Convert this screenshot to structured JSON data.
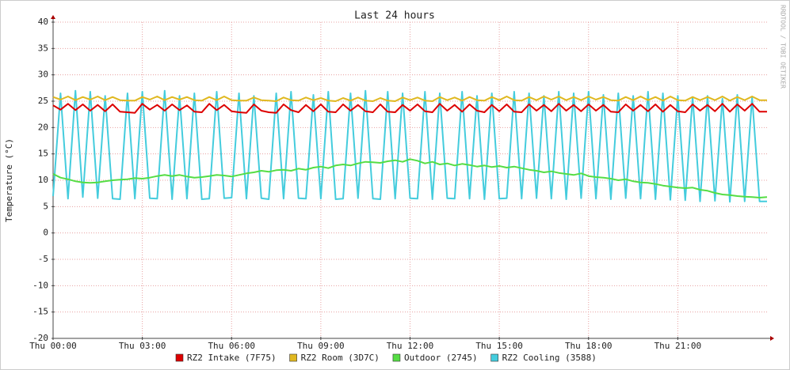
{
  "chart_data": {
    "type": "line",
    "title": "Last 24 hours",
    "ylabel": "Temperature (°C)",
    "watermark": "RRDTOOL / TOBI OETIKER",
    "xlim": [
      0,
      24
    ],
    "ylim": [
      -20,
      40
    ],
    "yticks": [
      -20,
      -15,
      -10,
      -5,
      0,
      5,
      10,
      15,
      20,
      25,
      30,
      35,
      40
    ],
    "xticks": [
      {
        "value": 0,
        "label": "Thu 00:00"
      },
      {
        "value": 3,
        "label": "Thu 03:00"
      },
      {
        "value": 6,
        "label": "Thu 06:00"
      },
      {
        "value": 9,
        "label": "Thu 09:00"
      },
      {
        "value": 12,
        "label": "Thu 12:00"
      },
      {
        "value": 15,
        "label": "Thu 15:00"
      },
      {
        "value": 18,
        "label": "Thu 18:00"
      },
      {
        "value": 21,
        "label": "Thu 21:00"
      }
    ],
    "grid": true,
    "x": [
      0,
      0.25,
      0.5,
      0.75,
      1,
      1.25,
      1.5,
      1.75,
      2,
      2.25,
      2.5,
      2.75,
      3,
      3.25,
      3.5,
      3.75,
      4,
      4.25,
      4.5,
      4.75,
      5,
      5.25,
      5.5,
      5.75,
      6,
      6.25,
      6.5,
      6.75,
      7,
      7.25,
      7.5,
      7.75,
      8,
      8.25,
      8.5,
      8.75,
      9,
      9.25,
      9.5,
      9.75,
      10,
      10.25,
      10.5,
      10.75,
      11,
      11.25,
      11.5,
      11.75,
      12,
      12.25,
      12.5,
      12.75,
      13,
      13.25,
      13.5,
      13.75,
      14,
      14.25,
      14.5,
      14.75,
      15,
      15.25,
      15.5,
      15.75,
      16,
      16.25,
      16.5,
      16.75,
      17,
      17.25,
      17.5,
      17.75,
      18,
      18.25,
      18.5,
      18.75,
      19,
      19.25,
      19.5,
      19.75,
      20,
      20.25,
      20.5,
      20.75,
      21,
      21.25,
      21.5,
      21.75,
      22,
      22.25,
      22.5,
      22.75,
      23,
      23.25,
      23.5,
      23.75,
      24
    ],
    "series": [
      {
        "name": "RZ2 Intake (7F75)",
        "color": "#dd0000",
        "values": [
          24.2,
          23.4,
          24.5,
          23.3,
          24.4,
          23.2,
          24.3,
          23.1,
          24.4,
          23.0,
          22.9,
          22.8,
          24.5,
          23.4,
          24.3,
          23.2,
          24.4,
          23.3,
          24.2,
          23.0,
          22.9,
          24.5,
          23.3,
          24.3,
          23.1,
          22.9,
          22.8,
          24.4,
          23.2,
          22.9,
          22.8,
          24.4,
          23.3,
          22.9,
          24.3,
          23.1,
          24.4,
          23.0,
          22.9,
          24.4,
          23.2,
          24.3,
          23.1,
          22.9,
          24.4,
          23.0,
          22.9,
          24.3,
          23.2,
          24.4,
          23.1,
          22.9,
          24.5,
          23.2,
          24.3,
          23.0,
          24.4,
          23.2,
          22.9,
          24.3,
          23.1,
          24.4,
          23.0,
          22.9,
          24.4,
          23.2,
          24.3,
          23.1,
          24.5,
          23.2,
          24.3,
          23.1,
          24.4,
          23.2,
          24.3,
          23.0,
          22.9,
          24.4,
          23.2,
          24.3,
          23.1,
          24.4,
          23.0,
          24.3,
          23.1,
          22.9,
          24.4,
          23.2,
          24.3,
          23.1,
          24.5,
          23.0,
          24.4,
          23.2,
          24.5,
          23.0,
          23.0
        ]
      },
      {
        "name": "RZ2 Room (3D7C)",
        "color": "#e0b820",
        "values": [
          25.8,
          25.3,
          25.9,
          25.2,
          25.8,
          25.3,
          25.9,
          25.2,
          25.8,
          25.2,
          25.1,
          25.1,
          25.8,
          25.3,
          25.9,
          25.2,
          25.8,
          25.3,
          25.8,
          25.2,
          25.1,
          25.8,
          25.2,
          25.9,
          25.2,
          25.1,
          25.1,
          25.7,
          25.2,
          25.1,
          25.0,
          25.7,
          25.2,
          25.1,
          25.7,
          25.2,
          25.6,
          25.1,
          25.0,
          25.6,
          25.1,
          25.7,
          25.1,
          25.0,
          25.6,
          25.1,
          25.0,
          25.7,
          25.2,
          25.7,
          25.1,
          25.0,
          25.8,
          25.2,
          25.7,
          25.1,
          25.8,
          25.2,
          25.1,
          25.8,
          25.2,
          25.9,
          25.2,
          25.1,
          25.8,
          25.2,
          25.9,
          25.3,
          25.9,
          25.2,
          25.8,
          25.2,
          25.9,
          25.3,
          25.8,
          25.2,
          25.1,
          25.8,
          25.2,
          25.9,
          25.2,
          25.8,
          25.1,
          25.9,
          25.2,
          25.1,
          25.8,
          25.2,
          25.8,
          25.2,
          25.9,
          25.1,
          25.8,
          25.2,
          25.9,
          25.2,
          25.2
        ]
      },
      {
        "name": "Outdoor (2745)",
        "color": "#55dd44",
        "values": [
          11.2,
          10.5,
          10.2,
          9.8,
          9.6,
          9.5,
          9.6,
          9.8,
          10.0,
          10.1,
          10.2,
          10.4,
          10.3,
          10.5,
          10.8,
          11.0,
          10.8,
          11.0,
          10.7,
          10.5,
          10.6,
          10.8,
          11.0,
          10.9,
          10.7,
          11.0,
          11.3,
          11.5,
          11.8,
          11.6,
          11.9,
          12.0,
          11.8,
          12.2,
          12.0,
          12.4,
          12.6,
          12.3,
          12.8,
          13.0,
          12.8,
          13.2,
          13.5,
          13.4,
          13.3,
          13.6,
          13.8,
          13.5,
          14.0,
          13.7,
          13.2,
          13.5,
          13.0,
          13.2,
          12.8,
          13.1,
          12.9,
          12.6,
          12.8,
          12.5,
          12.7,
          12.4,
          12.6,
          12.3,
          12.0,
          11.8,
          11.5,
          11.7,
          11.4,
          11.2,
          11.0,
          11.3,
          10.8,
          10.6,
          10.5,
          10.3,
          10.0,
          10.2,
          9.8,
          9.6,
          9.5,
          9.3,
          9.0,
          8.8,
          8.6,
          8.5,
          8.6,
          8.2,
          8.0,
          7.6,
          7.3,
          7.2,
          7.0,
          6.9,
          6.8,
          6.7,
          6.8
        ]
      },
      {
        "name": "RZ2 Cooling (3588)",
        "color": "#44ccdd",
        "values": [
          7.0,
          26.5,
          6.5,
          27.0,
          6.8,
          26.8,
          6.6,
          26.0,
          6.5,
          6.4,
          26.5,
          6.5,
          26.8,
          6.6,
          6.5,
          27.0,
          6.4,
          26.0,
          6.5,
          26.5,
          6.4,
          6.5,
          26.8,
          6.6,
          6.7,
          26.5,
          6.5,
          26.0,
          6.6,
          6.4,
          26.5,
          6.5,
          26.8,
          6.6,
          6.5,
          26.2,
          6.5,
          26.8,
          6.4,
          6.5,
          26.5,
          6.6,
          27.0,
          6.5,
          6.4,
          26.8,
          6.5,
          26.5,
          6.6,
          6.5,
          26.8,
          6.4,
          26.5,
          6.6,
          6.5,
          26.8,
          6.5,
          26.0,
          6.4,
          26.5,
          6.5,
          6.6,
          26.8,
          6.5,
          26.5,
          6.6,
          26.0,
          6.5,
          26.8,
          6.4,
          26.5,
          6.6,
          26.8,
          6.5,
          26.2,
          6.4,
          26.5,
          6.6,
          26.0,
          6.5,
          26.8,
          6.4,
          26.5,
          6.3,
          26.0,
          6.2,
          25.8,
          6.0,
          26.0,
          6.1,
          25.5,
          5.9,
          26.2,
          6.0,
          25.8,
          6.0,
          6.0
        ]
      }
    ]
  }
}
